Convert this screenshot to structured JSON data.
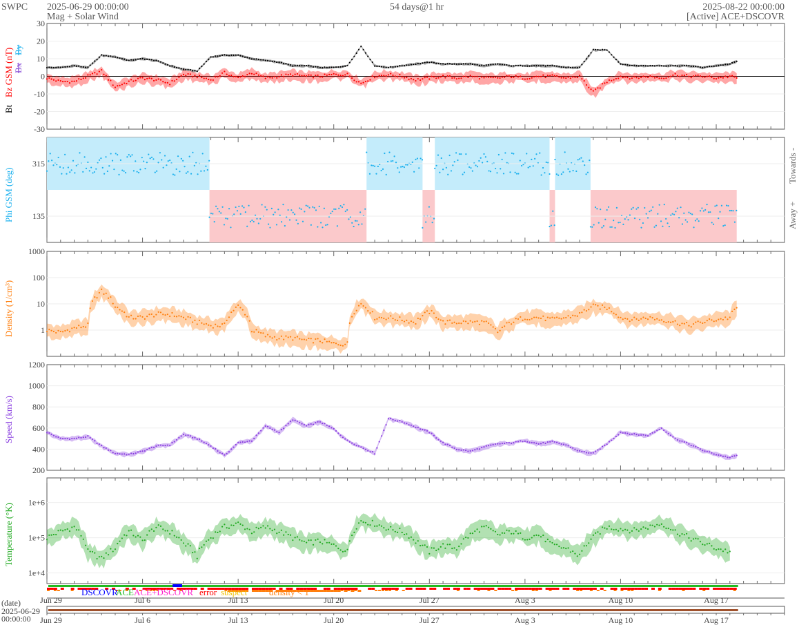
{
  "header": {
    "org": "SWPC",
    "start": "2025-06-29 00:00:00",
    "subtitle": "Mag + Solar Wind",
    "span": "54 days@1 hr",
    "end": "2025-08-22 00:00:00",
    "source": "[Active] ACE+DSCOVR"
  },
  "colors": {
    "bt": "#000000",
    "bz": "#ff0000",
    "bx": "#8a4fd8",
    "by": "#1ab0ee",
    "phi": "#1ab0ee",
    "density": "#ff7f0e",
    "speed": "#8a3fe0",
    "temp": "#22aa22",
    "status_green": "#22bb22",
    "status_red": "#ff0000"
  },
  "labels": {
    "bt": "Bt",
    "bz": "Bz GSM (nT)",
    "bx": "Bx",
    "by": "By",
    "phi": "Phi GSM (deg)",
    "towards": "Towards -",
    "away": "Away +",
    "density": "Density (1/cm³)",
    "speed": "Speed (km/s)",
    "temp": "Temperature (°K)",
    "date_axis": "(date)",
    "date_axis_start": "2025-06-29",
    "date_axis_time": "00:00:00"
  },
  "status_legend": [
    {
      "label": "DSCOVR",
      "color": "#0000ff"
    },
    {
      "label": "ACE",
      "color": "#22bb22"
    },
    {
      "label": "ACE+DSCOVR",
      "color": "#ff22cc"
    },
    {
      "label": "error",
      "color": "#ff0000"
    },
    {
      "label": "suspect",
      "color": "#f0c000"
    },
    {
      "label": "density < 1",
      "color": "#ff7f0e"
    }
  ],
  "date_ticks": [
    {
      "day": 0,
      "label": "Jun 29"
    },
    {
      "day": 7,
      "label": "Jul 6"
    },
    {
      "day": 14,
      "label": "Jul 13"
    },
    {
      "day": 21,
      "label": "Jul 20"
    },
    {
      "day": 28,
      "label": "Jul 27"
    },
    {
      "day": 35,
      "label": "Aug 3"
    },
    {
      "day": 42,
      "label": "Aug 10"
    },
    {
      "day": 49,
      "label": "Aug 17"
    }
  ],
  "chart_data": [
    {
      "type": "scatter",
      "name": "mag",
      "ylabel": "Bt / Bz GSM (nT)",
      "ylim": [
        -30,
        30
      ],
      "yticks": [
        "30",
        "20",
        "10",
        "0",
        "-10",
        "-20",
        "-30"
      ],
      "ytick_values": [
        30,
        20,
        10,
        0,
        -10,
        -20,
        -30
      ],
      "x_unit": "days since 2025-06-29",
      "series": [
        {
          "name": "Bt",
          "values": [
            5,
            5,
            6,
            5,
            12,
            11,
            9,
            10,
            9,
            6,
            4,
            3,
            11,
            12,
            12,
            10,
            9,
            8,
            6,
            6,
            5,
            5,
            6,
            17,
            6,
            5,
            6,
            7,
            8,
            7,
            7,
            7,
            6,
            7,
            6,
            6,
            6,
            6,
            5,
            5,
            15,
            15,
            7,
            6,
            6,
            6,
            6,
            6,
            5,
            6,
            7,
            10
          ]
        },
        {
          "name": "Bz",
          "values": [
            -1,
            -3,
            -3,
            0,
            3,
            -6,
            -3,
            -1,
            -2,
            -4,
            1,
            0,
            -2,
            2,
            -1,
            2,
            -1,
            0,
            1,
            0,
            0,
            1,
            1,
            -4,
            0,
            1,
            0,
            -2,
            -1,
            0,
            -1,
            0,
            -1,
            -1,
            0,
            -1,
            0,
            0,
            -1,
            0,
            -9,
            -3,
            0,
            -1,
            0,
            -1,
            1,
            0,
            0,
            -1,
            0,
            -2
          ]
        }
      ]
    },
    {
      "type": "scatter",
      "name": "phi",
      "ylabel": "Phi GSM (deg)",
      "ylim": [
        45,
        405
      ],
      "yticks": [
        "315",
        "135"
      ],
      "ytick_values": [
        315,
        135
      ],
      "sectors": [
        {
          "from": 0,
          "to": 11.9,
          "sector": "towards"
        },
        {
          "from": 11.9,
          "to": 23.4,
          "sector": "away"
        },
        {
          "from": 23.4,
          "to": 27.5,
          "sector": "towards"
        },
        {
          "from": 27.5,
          "to": 28.4,
          "sector": "away"
        },
        {
          "from": 28.4,
          "to": 36.8,
          "sector": "towards"
        },
        {
          "from": 36.8,
          "to": 37.2,
          "sector": "away"
        },
        {
          "from": 37.2,
          "to": 39.8,
          "sector": "towards"
        },
        {
          "from": 39.8,
          "to": 50.5,
          "sector": "away"
        }
      ]
    },
    {
      "type": "scatter",
      "name": "density",
      "ylabel": "Density (1/cm³)",
      "yscale": "log",
      "ylim": [
        0.1,
        1000
      ],
      "yticks": [
        "1000",
        "100",
        "10",
        "1"
      ],
      "ytick_values": [
        1000,
        100,
        10,
        1
      ],
      "values": [
        1,
        0.8,
        1.2,
        1.5,
        30,
        8,
        3,
        3,
        4,
        4,
        3,
        2,
        1.5,
        1.5,
        8,
        1,
        0.6,
        0.5,
        0.5,
        0.4,
        0.4,
        0.3,
        0.3,
        10,
        3,
        3,
        2.5,
        2,
        5,
        2,
        2,
        2,
        2,
        0.8,
        2,
        3,
        3,
        2.5,
        3,
        4,
        8,
        7,
        3,
        2.5,
        3,
        2.5,
        2,
        1.5,
        2,
        2.5,
        3,
        11
      ]
    },
    {
      "type": "scatter",
      "name": "speed",
      "ylabel": "Speed (km/s)",
      "ylim": [
        200,
        1200
      ],
      "yticks": [
        "1200",
        "1000",
        "800",
        "600",
        "400",
        "200"
      ],
      "ytick_values": [
        1200,
        1000,
        800,
        600,
        400,
        200
      ],
      "values": [
        560,
        500,
        500,
        520,
        430,
        360,
        350,
        380,
        430,
        440,
        540,
        500,
        430,
        340,
        460,
        480,
        620,
        560,
        680,
        620,
        660,
        590,
        480,
        420,
        360,
        690,
        660,
        610,
        560,
        460,
        400,
        380,
        420,
        450,
        460,
        480,
        450,
        470,
        440,
        380,
        360,
        450,
        560,
        540,
        530,
        600,
        500,
        450,
        390,
        350,
        320,
        360
      ]
    },
    {
      "type": "scatter",
      "name": "temperature",
      "ylabel": "Temperature (°K)",
      "yscale": "log",
      "ylim": [
        5000,
        5000000
      ],
      "yticks": [
        "1e+6",
        "1e+5",
        "1e+4"
      ],
      "ytick_values": [
        1000000,
        100000,
        10000
      ],
      "values": [
        100000,
        150000,
        200000,
        40000,
        25000,
        50000,
        150000,
        80000,
        200000,
        150000,
        70000,
        30000,
        100000,
        200000,
        250000,
        150000,
        200000,
        150000,
        100000,
        70000,
        80000,
        60000,
        40000,
        300000,
        250000,
        180000,
        150000,
        80000,
        40000,
        60000,
        50000,
        120000,
        200000,
        120000,
        150000,
        100000,
        120000,
        60000,
        50000,
        30000,
        100000,
        200000,
        180000,
        160000,
        200000,
        250000,
        150000,
        100000,
        70000,
        50000,
        40000
      ]
    }
  ]
}
